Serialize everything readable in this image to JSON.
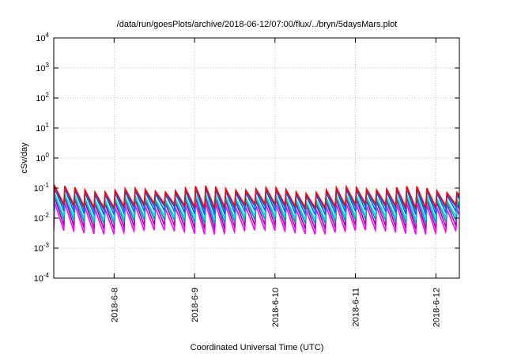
{
  "chart_data": {
    "type": "line",
    "title": "/data/run/goesPlots/archive/2018-06-12/07:00/flux/../bryn/5daysMars.plot",
    "xlabel": "Coordinated Universal Time (UTC)",
    "ylabel": "cSv/day",
    "y_scale": "log",
    "ylim": [
      0.0001,
      10000
    ],
    "y_ticks": [
      {
        "base": "10",
        "exp": "-4"
      },
      {
        "base": "10",
        "exp": "-3"
      },
      {
        "base": "10",
        "exp": "-2"
      },
      {
        "base": "10",
        "exp": "-1"
      },
      {
        "base": "10",
        "exp": "0"
      },
      {
        "base": "10",
        "exp": "1"
      },
      {
        "base": "10",
        "exp": "2"
      },
      {
        "base": "10",
        "exp": "3"
      },
      {
        "base": "10",
        "exp": "4"
      }
    ],
    "xlim": [
      "2018-06-07 06:00",
      "2018-06-12 07:00"
    ],
    "x_ticks": [
      "2018-6-8",
      "2018-6-9",
      "2018-6-10",
      "2018-6-11",
      "2018-6-12"
    ],
    "x_tick_dates": [
      "2018-06-08",
      "2018-06-09",
      "2018-06-10",
      "2018-06-11",
      "2018-06-12"
    ],
    "grid": true,
    "sawtooth_period_hours": 3,
    "series": [
      {
        "color": "#ff00ff",
        "peak": 0.03,
        "trough": 0.004
      },
      {
        "color": "#b000b0",
        "peak": 0.045,
        "trough": 0.006
      },
      {
        "color": "#00a0a0",
        "peak": 0.055,
        "trough": 0.009
      },
      {
        "color": "#00e0e0",
        "peak": 0.06,
        "trough": 0.012
      },
      {
        "color": "#0060ff",
        "peak": 0.09,
        "trough": 0.018
      },
      {
        "color": "#3050c0",
        "peak": 0.1,
        "trough": 0.025
      },
      {
        "color": "#ff0000",
        "peak": 0.11,
        "trough": 0.03
      }
    ]
  }
}
